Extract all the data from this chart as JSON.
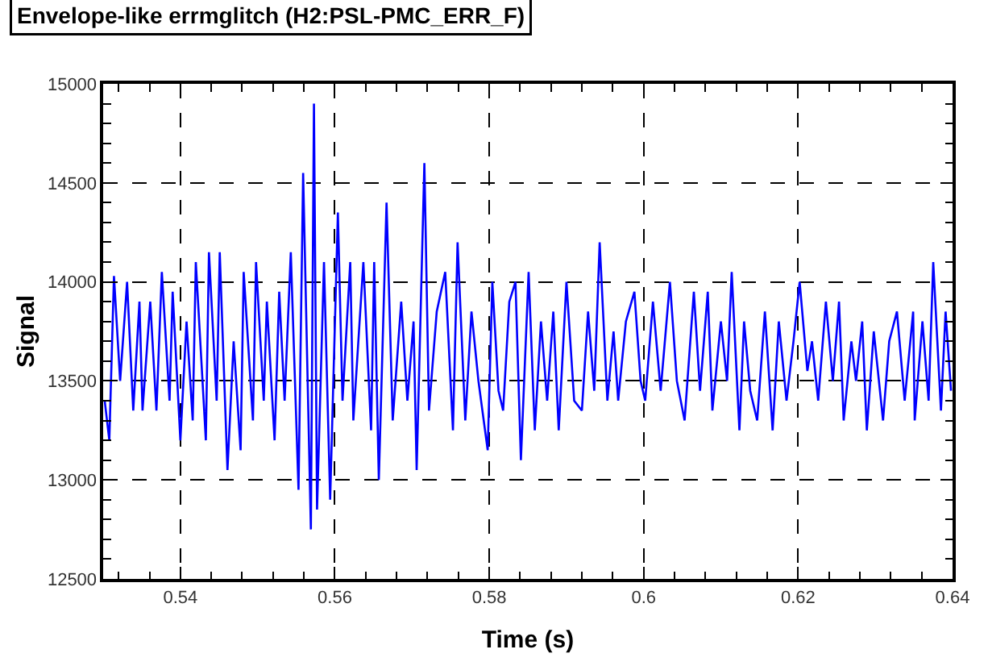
{
  "chart_data": {
    "type": "line",
    "title": "Envelope-like errmglitch (H2:PSL-PMC_ERR_F)",
    "xlabel": "Time (s)",
    "ylabel": "Signal",
    "xlim": [
      0.53,
      0.64
    ],
    "xticks": [
      0.54,
      0.56,
      0.58,
      0.6,
      0.62,
      0.64
    ],
    "ylim": [
      12500,
      15000
    ],
    "yticks": [
      12500,
      13000,
      13500,
      14000,
      14500,
      15000
    ],
    "grid": true,
    "marker": "none",
    "line_style": "solid",
    "series": [
      {
        "color": "#0000ff",
        "x": [
          0.5302,
          0.5308,
          0.5314,
          0.5322,
          0.5331,
          0.5339,
          0.5347,
          0.5351,
          0.5361,
          0.5369,
          0.5376,
          0.5386,
          0.539,
          0.54,
          0.5408,
          0.5416,
          0.542,
          0.5433,
          0.5437,
          0.5447,
          0.5451,
          0.5461,
          0.5469,
          0.5478,
          0.5482,
          0.5494,
          0.5498,
          0.5508,
          0.5512,
          0.5522,
          0.5528,
          0.5535,
          0.5543,
          0.5553,
          0.5559,
          0.5569,
          0.5573,
          0.5577,
          0.5586,
          0.5594,
          0.5604,
          0.561,
          0.562,
          0.5624,
          0.5637,
          0.5647,
          0.5651,
          0.5657,
          0.5667,
          0.5675,
          0.5686,
          0.5694,
          0.5702,
          0.5706,
          0.5716,
          0.5722,
          0.5732,
          0.5743,
          0.5753,
          0.5759,
          0.5769,
          0.5777,
          0.5786,
          0.5798,
          0.5804,
          0.5812,
          0.5818,
          0.5826,
          0.5834,
          0.5841,
          0.5851,
          0.5859,
          0.5867,
          0.5875,
          0.5883,
          0.589,
          0.59,
          0.591,
          0.592,
          0.5928,
          0.5936,
          0.5943,
          0.5953,
          0.5961,
          0.5967,
          0.5977,
          0.5988,
          0.5996,
          0.6002,
          0.6012,
          0.6022,
          0.6034,
          0.6043,
          0.6053,
          0.6065,
          0.6073,
          0.6083,
          0.6089,
          0.61,
          0.6108,
          0.6114,
          0.6124,
          0.613,
          0.6138,
          0.6147,
          0.6157,
          0.6167,
          0.6175,
          0.6185,
          0.6194,
          0.6202,
          0.6212,
          0.6218,
          0.6226,
          0.6236,
          0.6245,
          0.6253,
          0.6259,
          0.6269,
          0.6275,
          0.6283,
          0.6289,
          0.6298,
          0.631,
          0.6318,
          0.6328,
          0.6338,
          0.6349,
          0.6351,
          0.6361,
          0.6369,
          0.6375,
          0.6385,
          0.6391,
          0.6398
        ],
        "values": [
          13400,
          13200,
          14030,
          13500,
          14000,
          13350,
          13900,
          13350,
          13900,
          13350,
          14050,
          13400,
          13950,
          13200,
          13800,
          13300,
          14100,
          13200,
          14150,
          13400,
          14150,
          13050,
          13700,
          13150,
          14050,
          13300,
          14100,
          13400,
          13900,
          13200,
          13950,
          13400,
          14150,
          12950,
          14550,
          12750,
          14900,
          12850,
          14100,
          12900,
          14350,
          13400,
          14100,
          13300,
          14100,
          13250,
          14100,
          13000,
          14400,
          13300,
          13900,
          13400,
          13800,
          13050,
          14600,
          13350,
          13850,
          14050,
          13250,
          14200,
          13300,
          13850,
          13500,
          13150,
          14000,
          13450,
          13350,
          13900,
          14000,
          13100,
          14050,
          13250,
          13800,
          13400,
          13850,
          13250,
          14000,
          13400,
          13350,
          13850,
          13450,
          14200,
          13400,
          13750,
          13400,
          13800,
          13950,
          13500,
          13400,
          13900,
          13450,
          14000,
          13500,
          13300,
          13950,
          13450,
          13950,
          13350,
          13800,
          13500,
          14050,
          13250,
          13800,
          13450,
          13300,
          13850,
          13250,
          13800,
          13400,
          13700,
          14000,
          13550,
          13700,
          13400,
          13900,
          13500,
          13900,
          13300,
          13700,
          13500,
          13800,
          13250,
          13750,
          13300,
          13700,
          13850,
          13400,
          13850,
          13300,
          13800,
          13400,
          14100,
          13350,
          13850,
          13450
        ]
      }
    ]
  }
}
